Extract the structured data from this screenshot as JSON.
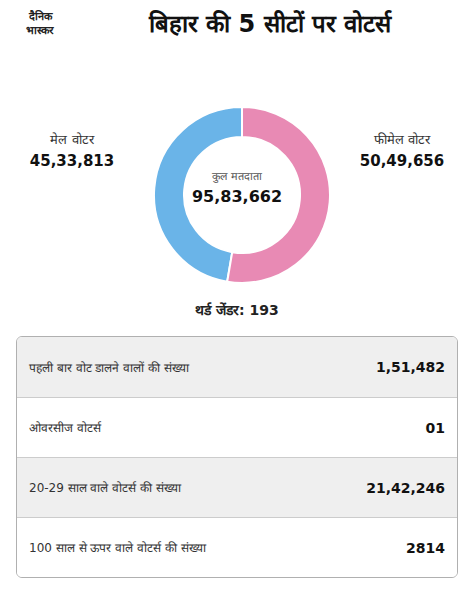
{
  "chart_data": {
    "type": "pie",
    "title": "बिहार की 5 सीटों पर वोटर्स",
    "categories": [
      "मेल वोटर",
      "फीमेल वोटर"
    ],
    "values": [
      4533813,
      5049656
    ],
    "value_labels": [
      "45,33,813",
      "50,49,656"
    ],
    "colors": [
      "#6ab4e8",
      "#e88ab4"
    ],
    "data_labels": true,
    "annotations": [
      "दैनिक",
      "भास्कर",
      "कुल मतदाता",
      "95,83,662",
      "थर्ड जेंडर: 193"
    ],
    "table": [
      {
        "label": "पहली बार वोट डालने वालों की संख्या",
        "value": "1,51,482"
      },
      {
        "label": "ओवरसीज वोटर्स",
        "value": "01"
      },
      {
        "label": "20-29 साल वाले वोटर्स की संख्या",
        "value": "21,42,246"
      },
      {
        "label": "100 साल से ऊपर वाले वोटर्स की संख्या",
        "value": "2814"
      }
    ]
  }
}
